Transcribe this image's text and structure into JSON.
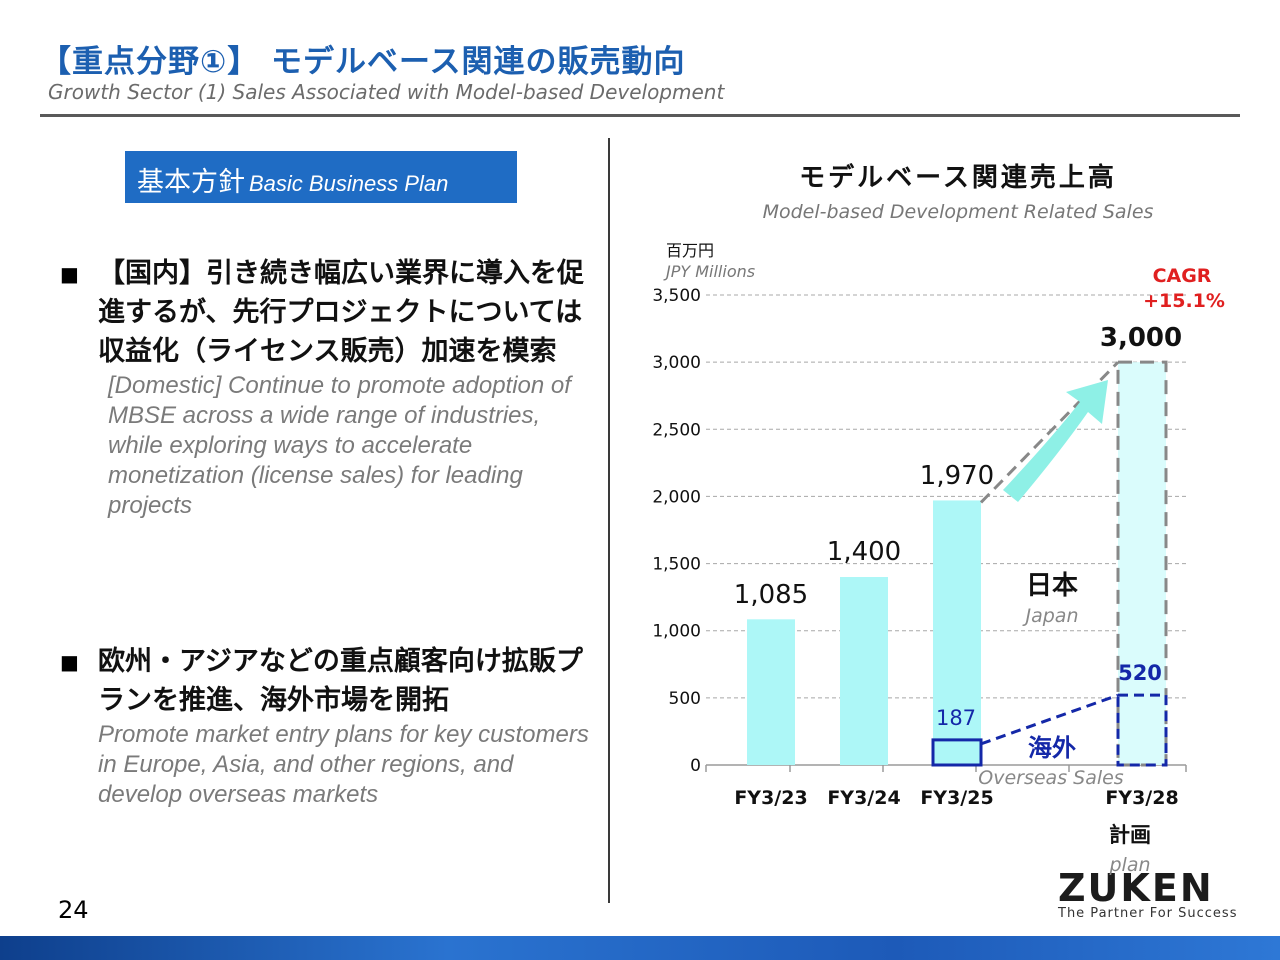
{
  "header": {
    "title": "【重点分野①】 モデルベース関連の販売動向",
    "subtitle": "Growth Sector (1) Sales Associated with Model-based Development"
  },
  "plan_box": {
    "title_jp": "基本方針",
    "title_en": "Basic Business Plan"
  },
  "bullets": [
    {
      "mark": "■",
      "head": "【国内】引き続き幅広い業界に導入を促進するが、先行プロジェクトについては収益化（ライセンス販売）加速を模索",
      "en": "[Domestic] Continue to promote adoption of MBSE across a wide range of industries, while exploring ways to accelerate monetization (license sales) for leading projects"
    },
    {
      "mark": "■",
      "head": "欧州・アジアなどの重点顧客向け拡販プランを推進、海外市場を開拓",
      "en": "Promote market entry plans for key customers in Europe, Asia, and other regions, and develop overseas markets"
    }
  ],
  "page_number": "24",
  "logo": {
    "text": "ZUKEN",
    "tagline": "The Partner For Success"
  },
  "colors": {
    "title": "#1c5fb0",
    "plan_box": "#1f6cc4",
    "bar_fill": "#adf7f7",
    "overseas": "#1428a8",
    "cagr": "#e02020",
    "arrow": "#8ef0e6",
    "dash": "#888888"
  },
  "chart_data": {
    "type": "bar",
    "title": "モデルベース関連売上高",
    "subtitle": "Model-based Development Related Sales",
    "ylabel": "百万円",
    "ylabel_en": "JPY Millions",
    "ylim": [
      0,
      3500
    ],
    "yticks": [
      0,
      500,
      1000,
      1500,
      2000,
      2500,
      3000,
      3500
    ],
    "ytick_labels": [
      "0",
      "500",
      "1,000",
      "1,500",
      "2,000",
      "2,500",
      "3,000",
      "3,500"
    ],
    "grid": true,
    "categories": [
      "FY3/23",
      "FY3/24",
      "FY3/25",
      "FY3/28"
    ],
    "plan_label": "計画",
    "plan_label_en": "plan",
    "series": [
      {
        "name": "日本",
        "name_en": "Japan",
        "values": [
          1085,
          1400,
          1970,
          3000
        ],
        "labels": [
          "1,085",
          "1,400",
          "1,970",
          "3,000"
        ]
      },
      {
        "name": "海外",
        "name_en": "Overseas Sales",
        "values": [
          null,
          null,
          187,
          520
        ],
        "labels": [
          "",
          "",
          "187",
          "520"
        ]
      }
    ],
    "annotations": {
      "cagr_label": "CAGR",
      "cagr_value": "+15.1%"
    }
  }
}
